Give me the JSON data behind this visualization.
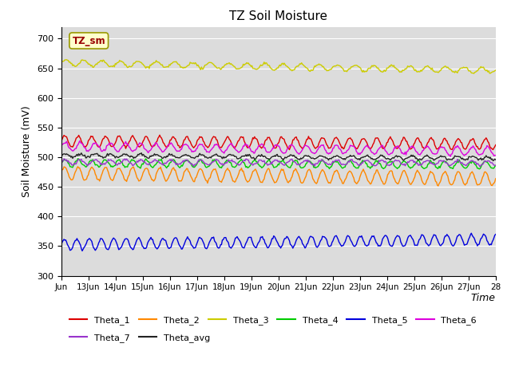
{
  "title": "TZ Soil Moisture",
  "ylabel": "Soil Moisture (mV)",
  "xlabel": "Time",
  "ylim": [
    300,
    720
  ],
  "yticks": [
    300,
    350,
    400,
    450,
    500,
    550,
    600,
    650,
    700
  ],
  "xtick_labels": [
    "Jun",
    "13Jun",
    "14Jun",
    "15Jun",
    "16Jun",
    "17Jun",
    "18Jun",
    "19Jun",
    "20Jun",
    "21Jun",
    "22Jun",
    "23Jun",
    "24Jun",
    "25Jun",
    "26Jun",
    "27Jun",
    "28"
  ],
  "bg_color": "#dcdcdc",
  "series_order": [
    "Theta_1",
    "Theta_2",
    "Theta_3",
    "Theta_4",
    "Theta_5",
    "Theta_6",
    "Theta_7",
    "Theta_avg"
  ],
  "series": {
    "Theta_1": {
      "color": "#dd0000",
      "base": 527,
      "amp": 9,
      "trend": -0.3,
      "freq": 2.0
    },
    "Theta_2": {
      "color": "#ff8800",
      "base": 473,
      "amp": 11,
      "trend": -0.6,
      "freq": 2.0
    },
    "Theta_3": {
      "color": "#cccc00",
      "base": 659,
      "amp": 5,
      "trend": -0.8,
      "freq": 1.5
    },
    "Theta_4": {
      "color": "#00cc00",
      "base": 490,
      "amp": 6,
      "trend": -0.2,
      "freq": 2.0
    },
    "Theta_5": {
      "color": "#0000dd",
      "base": 353,
      "amp": 9,
      "trend": 0.5,
      "freq": 2.2
    },
    "Theta_6": {
      "color": "#dd00dd",
      "base": 518,
      "amp": 7,
      "trend": -0.5,
      "freq": 1.8
    },
    "Theta_7": {
      "color": "#9933cc",
      "base": 492,
      "amp": 4,
      "trend": -0.1,
      "freq": 1.8
    },
    "Theta_avg": {
      "color": "#222222",
      "base": 503,
      "amp": 3,
      "trend": -0.3,
      "freq": 1.8
    }
  },
  "tz_sm_label": "TZ_sm",
  "tz_sm_bg": "#ffffcc",
  "tz_sm_fg": "#990000",
  "legend_row1": [
    "Theta_1",
    "Theta_2",
    "Theta_3",
    "Theta_4",
    "Theta_5",
    "Theta_6"
  ],
  "legend_row2": [
    "Theta_7",
    "Theta_avg"
  ],
  "n_points": 500
}
